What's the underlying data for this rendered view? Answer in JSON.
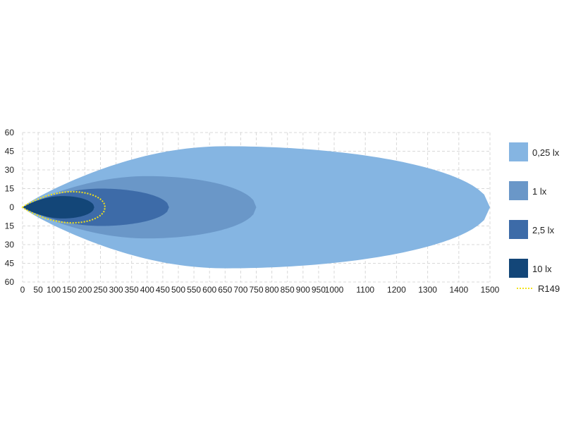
{
  "chart_data": {
    "type": "area",
    "title": "",
    "xlabel": "",
    "ylabel": "",
    "xlim": [
      0,
      1500
    ],
    "ylim": [
      -60,
      60
    ],
    "xticks": [
      "0",
      "50",
      "100",
      "150",
      "200",
      "250",
      "300",
      "350",
      "400",
      "450",
      "500",
      "550",
      "600",
      "650",
      "700",
      "750",
      "800",
      "850",
      "900",
      "950",
      "1000",
      "1100",
      "1200",
      "1300",
      "1400",
      "1500"
    ],
    "yticks": [
      "60",
      "45",
      "30",
      "15",
      "0",
      "15",
      "30",
      "45",
      "60"
    ],
    "grid": true,
    "legend_placement": "right",
    "series": [
      {
        "name": "0,25 lx",
        "color": "#85b5e2",
        "reach": 1500,
        "half_width": 49,
        "widest_at": 650
      },
      {
        "name": "1 lx",
        "color": "#6a97c8",
        "reach": 750,
        "half_width": 25,
        "widest_at": 400
      },
      {
        "name": "2,5 lx",
        "color": "#3d6ba8",
        "reach": 470,
        "half_width": 15,
        "widest_at": 250
      },
      {
        "name": "10 lx",
        "color": "#134678",
        "reach": 230,
        "half_width": 9,
        "widest_at": 130
      }
    ],
    "outline": {
      "name": "R149",
      "color": "#f2e21a",
      "reach": 265,
      "half_width": 12.5,
      "widest_at": 160
    }
  }
}
